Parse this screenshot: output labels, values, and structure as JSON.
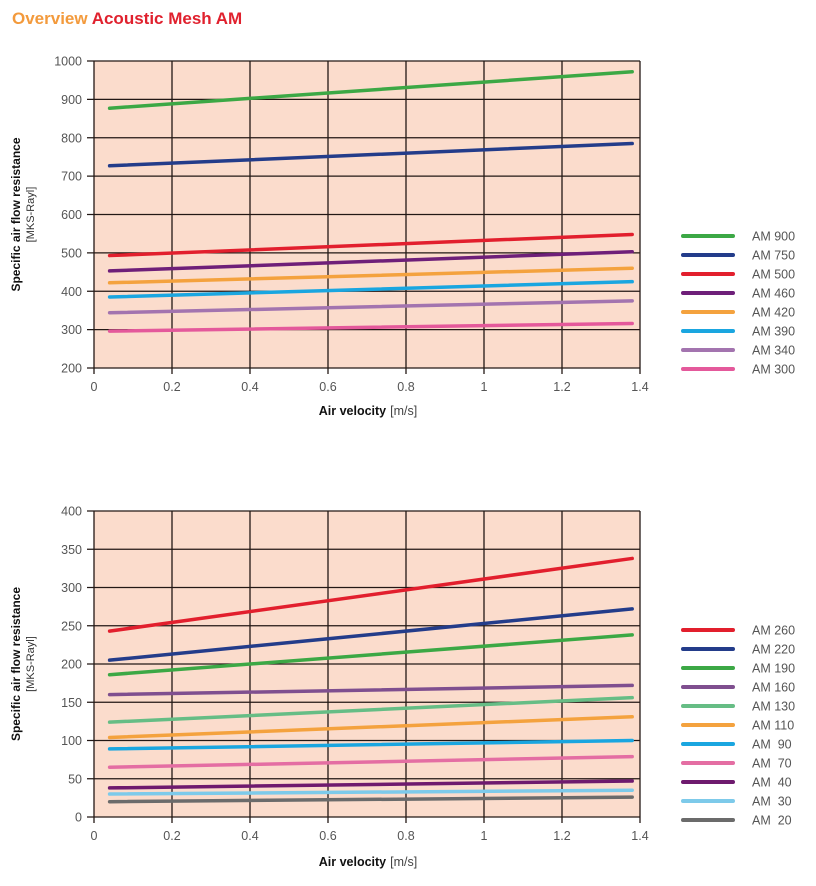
{
  "title": {
    "prefix": "Overview",
    "main": "Acoustic Mesh AM",
    "prefix_color": "#f39a3c",
    "main_color": "#e0212e"
  },
  "chart_data": [
    {
      "type": "line",
      "title": "",
      "xlabel": "Air velocity",
      "xunit": "[m/s]",
      "ylabel": "Specific air flow resistance",
      "yunit": "[MKS-Rayl]",
      "xlim": [
        0,
        1.4
      ],
      "ylim": [
        200,
        1000
      ],
      "xticks": [
        "0",
        "0.2",
        "0.4",
        "0.6",
        "0.8",
        "1",
        "1.2",
        "1.4"
      ],
      "yticks": [
        "200",
        "300",
        "400",
        "500",
        "600",
        "700",
        "800",
        "900",
        "1000"
      ],
      "grid": true,
      "background": "#fbdccc",
      "legend_position": "right",
      "x": [
        0.04,
        1.38
      ],
      "series": [
        {
          "name": "AM 900",
          "color": "#3ca845",
          "values": [
            877,
            972
          ]
        },
        {
          "name": "AM 750",
          "color": "#233c8a",
          "values": [
            727,
            785
          ]
        },
        {
          "name": "AM 500",
          "color": "#e21f2d",
          "values": [
            493,
            548
          ]
        },
        {
          "name": "AM 460",
          "color": "#6e1f79",
          "values": [
            453,
            503
          ]
        },
        {
          "name": "AM 420",
          "color": "#f4a23e",
          "values": [
            422,
            460
          ]
        },
        {
          "name": "AM 390",
          "color": "#1aa6e0",
          "values": [
            385,
            425
          ]
        },
        {
          "name": "AM 340",
          "color": "#a374af",
          "values": [
            344,
            375
          ]
        },
        {
          "name": "AM 300",
          "color": "#e4599b",
          "values": [
            296,
            316
          ]
        }
      ]
    },
    {
      "type": "line",
      "title": "",
      "xlabel": "Air velocity",
      "xunit": "[m/s]",
      "ylabel": "Specific air flow resistance",
      "yunit": "[MKS-Rayl]",
      "xlim": [
        0,
        1.4
      ],
      "ylim": [
        0,
        400
      ],
      "xticks": [
        "0",
        "0.2",
        "0.4",
        "0.6",
        "0.8",
        "1",
        "1.2",
        "1.4"
      ],
      "yticks": [
        "0",
        "50",
        "100",
        "150",
        "200",
        "250",
        "300",
        "350",
        "400"
      ],
      "grid": true,
      "background": "#fbdccc",
      "legend_position": "right",
      "x": [
        0.04,
        1.38
      ],
      "series": [
        {
          "name": "AM 260",
          "color": "#e21f2d",
          "values": [
            243,
            338
          ]
        },
        {
          "name": "AM 220",
          "color": "#233c8a",
          "values": [
            205,
            272
          ]
        },
        {
          "name": "AM 190",
          "color": "#3ca845",
          "values": [
            186,
            238
          ]
        },
        {
          "name": "AM 160",
          "color": "#7f4f8f",
          "values": [
            160,
            172
          ]
        },
        {
          "name": "AM 130",
          "color": "#66bd85",
          "values": [
            124,
            156
          ]
        },
        {
          "name": "AM 110",
          "color": "#f4a23e",
          "values": [
            104,
            131
          ]
        },
        {
          "name": "AM  90",
          "color": "#1aa6e0",
          "values": [
            89,
            100
          ]
        },
        {
          "name": "AM  70",
          "color": "#e46ea3",
          "values": [
            65,
            79
          ]
        },
        {
          "name": "AM  40",
          "color": "#6e1a6e",
          "values": [
            38,
            47
          ]
        },
        {
          "name": "AM  30",
          "color": "#7dcaea",
          "values": [
            30,
            35
          ]
        },
        {
          "name": "AM  20",
          "color": "#6b6b6b",
          "values": [
            20,
            26
          ]
        }
      ]
    }
  ]
}
